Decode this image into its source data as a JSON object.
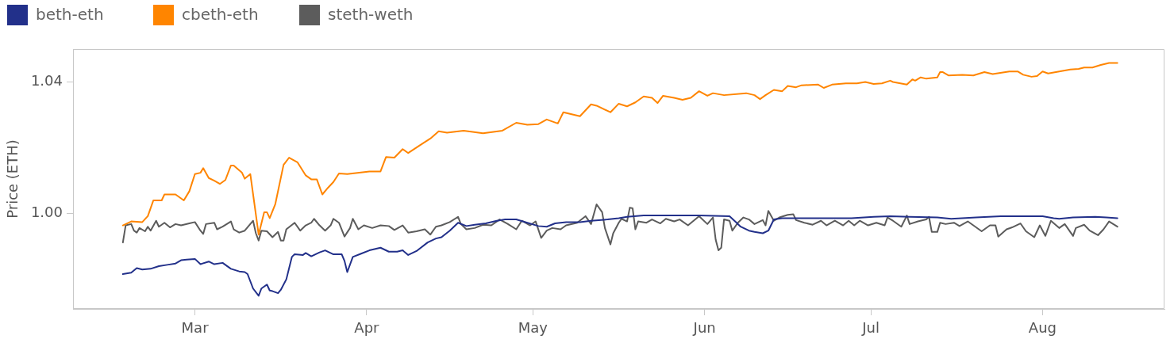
{
  "chart_data": {
    "type": "line",
    "ylabel": "Price (ETH)",
    "legend": "top left",
    "xlim": [
      "--02-07",
      "--08-23"
    ],
    "xticks": [
      {
        "value": "--03-01",
        "label": "Mar"
      },
      {
        "value": "--04-01",
        "label": "Apr"
      },
      {
        "value": "--05-01",
        "label": "May"
      },
      {
        "value": "--06-01",
        "label": "Jun"
      },
      {
        "value": "--07-01",
        "label": "Jul"
      },
      {
        "value": "--08-01",
        "label": "Aug"
      }
    ],
    "ylim": [
      0.971,
      1.05
    ],
    "yticks": [
      {
        "value": 1,
        "label": "1.00"
      },
      {
        "value": 1.04,
        "label": "1.04"
      }
    ],
    "series": [
      {
        "name": "beth-eth",
        "color": "#22308a",
        "x": [
          "--02-16",
          "--02-17T12:00",
          "--02-18T12:00",
          "--02-19T12:00",
          "--02-21",
          "--02-22T12:00",
          "--02-24",
          "--02-25T12:00",
          "--02-26T12:00",
          "--02-27T12:00",
          "--03-01",
          "--03-02",
          "--03-03T12:00",
          "--03-04T12:00",
          "--03-06",
          "--03-07T12:00",
          "--03-09",
          "--03-10",
          "--03-10T12:00",
          "--03-11T12:00",
          "--03-12T12:00",
          "--03-13",
          "--03-14",
          "--03-14T12:00",
          "--03-15",
          "--03-16",
          "--03-16T12:00",
          "--03-17T12:00",
          "--03-18T12:00",
          "--03-19",
          "--03-20T12:00",
          "--03-21",
          "--03-22",
          "--03-23T12:00",
          "--03-24T12:00",
          "--03-26",
          "--03-27T12:00",
          "--03-28",
          "--03-28T12:00",
          "--03-29T12:00",
          "--03-31",
          "--04-01T12:00",
          "--04-03T12:00",
          "--04-05",
          "--04-06T12:00",
          "--04-07T12:00",
          "--04-08T12:00",
          "--04-10",
          "--04-12",
          "--04-13T12:00",
          "--04-14T12:00",
          "--04-16",
          "--04-17T12:00",
          "--04-19",
          "--04-20T12:00",
          "--04-22T12:00",
          "--04-24T12:00",
          "--04-26",
          "--04-28",
          "--04-30",
          "--05-02",
          "--05-03T12:00",
          "--05-05",
          "--05-07",
          "--05-09T12:00",
          "--05-11T12:00",
          "--05-14T12:00",
          "--05-16T12:00",
          "--05-18",
          "--05-21",
          "--05-25",
          "--05-31",
          "--06-05T12:00",
          "--06-06T12:00",
          "--06-07T12:00",
          "--06-09",
          "--06-10",
          "--06-11T12:00",
          "--06-12T12:00",
          "--06-13T12:00",
          "--06-15",
          "--06-18",
          "--06-22T12:00",
          "--06-27T12:00",
          "--07-01T12:00",
          "--07-04T12:00",
          "--07-08",
          "--07-13",
          "--07-15T12:00",
          "--07-20",
          "--07-24T12:00",
          "--08-01",
          "--08-03",
          "--08-04",
          "--08-06T12:00",
          "--08-10T12:00",
          "--08-12T12:00",
          "--08-14T12:00"
        ],
        "values": [
          0.9816,
          0.982,
          0.9834,
          0.983,
          0.9832,
          0.984,
          0.9844,
          0.9848,
          0.9858,
          0.986,
          0.9862,
          0.9846,
          0.9854,
          0.9846,
          0.985,
          0.9832,
          0.9824,
          0.9822,
          0.9816,
          0.9772,
          0.975,
          0.9772,
          0.9784,
          0.9766,
          0.9764,
          0.9758,
          0.9768,
          0.98,
          0.9868,
          0.9876,
          0.9874,
          0.988,
          0.987,
          0.9882,
          0.9888,
          0.9876,
          0.9876,
          0.9856,
          0.9822,
          0.9868,
          0.9878,
          0.9888,
          0.9896,
          0.9884,
          0.9884,
          0.9888,
          0.9874,
          0.9886,
          0.9912,
          0.9924,
          0.9928,
          0.9948,
          0.9972,
          0.9962,
          0.9966,
          0.997,
          0.9978,
          0.9982,
          0.9982,
          0.9972,
          0.9962,
          0.996,
          0.997,
          0.9974,
          0.9974,
          0.9978,
          0.9982,
          0.9986,
          0.999,
          0.9994,
          0.9994,
          0.9994,
          0.9992,
          0.9976,
          0.996,
          0.9948,
          0.9944,
          0.994,
          0.9948,
          0.9982,
          0.9986,
          0.9986,
          0.9986,
          0.9986,
          0.999,
          0.9992,
          0.999,
          0.9988,
          0.9984,
          0.9988,
          0.9992,
          0.9992,
          0.9986,
          0.9984,
          0.9988,
          0.999,
          0.9988,
          0.9986
        ]
      },
      {
        "name": "cbeth-eth",
        "color": "#ff8500",
        "x": [
          "--02-16",
          "--02-17T12:00",
          "--02-19T12:00",
          "--02-20T12:00",
          "--02-21T12:00",
          "--02-23",
          "--02-23T12:00",
          "--02-25T12:00",
          "--02-27",
          "--02-28",
          "--03-01",
          "--03-02",
          "--03-02T12:00",
          "--03-03T12:00",
          "--03-04T12:00",
          "--03-05T12:00",
          "--03-06T12:00",
          "--03-07T12:00",
          "--03-08",
          "--03-09T12:00",
          "--03-10",
          "--03-11",
          "--03-12T12:00",
          "--03-13T12:00",
          "--03-14",
          "--03-14T12:00",
          "--03-15T12:00",
          "--03-17",
          "--03-18",
          "--03-19T12:00",
          "--03-21",
          "--03-22",
          "--03-23",
          "--03-24",
          "--03-25",
          "--03-26",
          "--03-27",
          "--03-28T12:00",
          "--04-01T12:00",
          "--04-03T12:00",
          "--04-04T12:00",
          "--04-06",
          "--04-07T12:00",
          "--04-08T12:00",
          "--04-11",
          "--04-12T12:00",
          "--04-14",
          "--04-15T12:00",
          "--04-18T12:00",
          "--04-22",
          "--04-25T12:00",
          "--04-28",
          "--04-30",
          "--05-02",
          "--05-03T12:00",
          "--05-05T12:00",
          "--05-06T12:00",
          "--05-08",
          "--05-09T12:00",
          "--05-11T12:00",
          "--05-12T12:00",
          "--05-15",
          "--05-16T12:00",
          "--05-18",
          "--05-19T12:00",
          "--05-21",
          "--05-22T12:00",
          "--05-23T12:00",
          "--05-24T12:00",
          "--05-26T12:00",
          "--05-28",
          "--05-29T12:00",
          "--05-31",
          "--06-01T12:00",
          "--06-02T12:00",
          "--06-04T12:00",
          "--06-08T12:00",
          "--06-10",
          "--06-11",
          "--06-12",
          "--06-13T12:00",
          "--06-15",
          "--06-16",
          "--06-17T12:00",
          "--06-18T12:00",
          "--06-21T12:00",
          "--06-22T12:00",
          "--06-24",
          "--06-26T12:00",
          "--06-28T12:00",
          "--06-30",
          "--07-01T12:00",
          "--07-03",
          "--07-04T12:00",
          "--07-05",
          "--07-07T12:00",
          "--07-08T12:00",
          "--07-09",
          "--07-10",
          "--07-11",
          "--07-13",
          "--07-13T12:00",
          "--07-14",
          "--07-15",
          "--07-17T12:00",
          "--07-19T12:00",
          "--07-21T12:00",
          "--07-23",
          "--07-26",
          "--07-27T12:00",
          "--07-28T12:00",
          "--07-30",
          "--07-31",
          "--08-01",
          "--08-02",
          "--08-04",
          "--08-06",
          "--08-07T12:00",
          "--08-08T12:00",
          "--08-10",
          "--08-11T12:00",
          "--08-13",
          "--08-14T12:00"
        ],
        "values": [
          0.9964,
          0.9976,
          0.9974,
          0.9992,
          1.004,
          1.004,
          1.0058,
          1.0058,
          1.004,
          1.0068,
          1.012,
          1.0124,
          1.0138,
          1.0108,
          1.01,
          1.009,
          1.0102,
          1.0146,
          1.0146,
          1.0124,
          1.0106,
          1.012,
          0.9936,
          1.0004,
          1.0004,
          0.9986,
          1.0028,
          1.0148,
          1.017,
          1.0156,
          1.0116,
          1.0104,
          1.0104,
          1.0058,
          1.0078,
          1.0096,
          1.0122,
          1.012,
          1.0128,
          1.0128,
          1.0172,
          1.017,
          1.0196,
          1.0184,
          1.0212,
          1.0228,
          1.025,
          1.0246,
          1.0252,
          1.0244,
          1.0252,
          1.0276,
          1.027,
          1.0272,
          1.0286,
          1.0274,
          1.0308,
          1.0302,
          1.0296,
          1.0332,
          1.0328,
          1.0308,
          1.0334,
          1.0326,
          1.0338,
          1.0356,
          1.0352,
          1.0336,
          1.0358,
          1.0352,
          1.0346,
          1.0352,
          1.0372,
          1.0358,
          1.0366,
          1.036,
          1.0366,
          1.036,
          1.0348,
          1.036,
          1.0376,
          1.0372,
          1.0388,
          1.0384,
          1.039,
          1.0392,
          1.0382,
          1.0392,
          1.0396,
          1.0396,
          1.04,
          1.0394,
          1.0396,
          1.0404,
          1.04,
          1.0392,
          1.0408,
          1.0404,
          1.0414,
          1.041,
          1.0414,
          1.043,
          1.043,
          1.042,
          1.0422,
          1.042,
          1.043,
          1.0424,
          1.0432,
          1.0432,
          1.0422,
          1.0416,
          1.0418,
          1.0432,
          1.0426,
          1.0432,
          1.0438,
          1.044,
          1.0444,
          1.0444,
          1.0452,
          1.0458,
          1.0458
        ]
      },
      {
        "name": "steth-weth",
        "color": "#5c5c5c",
        "x": [
          "--02-16",
          "--02-16T12:00",
          "--02-17T12:00",
          "--02-18",
          "--02-18T12:00",
          "--02-19",
          "--02-20",
          "--02-20T12:00",
          "--02-21",
          "--02-22",
          "--02-22T12:00",
          "--02-23T12:00",
          "--02-24T12:00",
          "--02-25T12:00",
          "--02-26T12:00",
          "--02-28",
          "--03-01",
          "--03-02",
          "--03-02T12:00",
          "--03-03",
          "--03-04T12:00",
          "--03-05",
          "--03-06",
          "--03-07T12:00",
          "--03-08",
          "--03-09",
          "--03-10",
          "--03-11T12:00",
          "--03-12",
          "--03-12T12:00",
          "--03-13",
          "--03-14",
          "--03-15",
          "--03-16",
          "--03-16T12:00",
          "--03-17",
          "--03-17T12:00",
          "--03-19",
          "--03-20",
          "--03-21",
          "--03-22",
          "--03-22T12:00",
          "--03-23T12:00",
          "--03-24T12:00",
          "--03-25T12:00",
          "--03-26",
          "--03-27",
          "--03-28",
          "--03-29",
          "--03-29T12:00",
          "--03-30T12:00",
          "--03-31T12:00",
          "--04-02",
          "--04-03T12:00",
          "--04-05",
          "--04-06",
          "--04-07T12:00",
          "--04-08T12:00",
          "--04-10",
          "--04-11T12:00",
          "--04-12T12:00",
          "--04-13T12:00",
          "--04-14T12:00",
          "--04-16",
          "--04-17T12:00",
          "--04-18",
          "--04-19",
          "--04-20T12:00",
          "--04-22",
          "--04-23T12:00",
          "--04-25",
          "--04-26T12:00",
          "--04-28",
          "--04-29",
          "--04-30T12:00",
          "--05-01T12:00",
          "--05-02T12:00",
          "--05-03T12:00",
          "--05-04T12:00",
          "--05-06",
          "--05-07",
          "--05-09",
          "--05-10T12:00",
          "--05-11T12:00",
          "--05-12T12:00",
          "--05-13T12:00",
          "--05-14",
          "--05-15",
          "--05-15T12:00",
          "--05-16T12:00",
          "--05-17",
          "--05-18",
          "--05-18T12:00",
          "--05-19",
          "--05-19T12:00",
          "--05-20",
          "--05-21T12:00",
          "--05-22T12:00",
          "--05-24",
          "--05-25",
          "--05-26T12:00",
          "--05-27T12:00",
          "--05-29",
          "--05-30",
          "--05-31",
          "--06-01T12:00",
          "--06-02T12:00",
          "--06-03",
          "--06-03T12:00",
          "--06-04",
          "--06-04T12:00",
          "--06-05T12:00",
          "--06-06",
          "--06-07",
          "--06-08",
          "--06-09",
          "--06-10",
          "--06-11T12:00",
          "--06-12",
          "--06-12T12:00",
          "--06-13T12:00",
          "--06-14T12:00",
          "--06-16",
          "--06-17",
          "--06-17T12:00",
          "--06-19",
          "--06-20T12:00",
          "--06-22",
          "--06-23",
          "--06-24T12:00",
          "--06-26",
          "--06-27",
          "--06-28",
          "--06-29",
          "--06-30T12:00",
          "--07-02",
          "--07-03T12:00",
          "--07-04",
          "--07-05",
          "--07-06T12:00",
          "--07-07T12:00",
          "--07-08",
          "--07-09T12:00",
          "--07-11",
          "--07-11T12:00",
          "--07-12",
          "--07-13",
          "--07-13T12:00",
          "--07-14T12:00",
          "--07-16",
          "--07-17",
          "--07-18T12:00",
          "--07-20",
          "--07-21",
          "--07-22T12:00",
          "--07-23T12:00",
          "--07-24",
          "--07-25T12:00",
          "--07-26T12:00",
          "--07-28",
          "--07-29",
          "--07-30T12:00",
          "--07-31T12:00",
          "--08-01T12:00",
          "--08-02T12:00",
          "--08-04",
          "--08-05",
          "--08-06T12:00",
          "--08-07",
          "--08-08T12:00",
          "--08-09T12:00",
          "--08-11",
          "--08-12",
          "--08-13",
          "--08-14T12:00"
        ],
        "values": [
          0.9912,
          0.9964,
          0.9968,
          0.9948,
          0.9942,
          0.9956,
          0.9946,
          0.996,
          0.9948,
          0.9978,
          0.996,
          0.9972,
          0.9958,
          0.9968,
          0.9964,
          0.997,
          0.9974,
          0.9948,
          0.9938,
          0.9968,
          0.9972,
          0.9952,
          0.996,
          0.9976,
          0.9952,
          0.9942,
          0.9948,
          0.9978,
          0.994,
          0.9918,
          0.9948,
          0.9946,
          0.9928,
          0.9944,
          0.9918,
          0.9918,
          0.9952,
          0.9972,
          0.9948,
          0.9964,
          0.9972,
          0.9984,
          0.9964,
          0.9948,
          0.9964,
          0.9984,
          0.9972,
          0.993,
          0.9956,
          0.9984,
          0.9952,
          0.9964,
          0.9956,
          0.9964,
          0.9962,
          0.995,
          0.9964,
          0.9942,
          0.9946,
          0.9952,
          0.9936,
          0.996,
          0.9964,
          0.9974,
          0.999,
          0.9968,
          0.9952,
          0.9956,
          0.9966,
          0.9964,
          0.9982,
          0.9968,
          0.9952,
          0.9978,
          0.9964,
          0.9976,
          0.9926,
          0.9948,
          0.9956,
          0.9952,
          0.9964,
          0.9972,
          0.9992,
          0.9968,
          1.0028,
          1.0004,
          0.9956,
          0.9906,
          0.994,
          0.9972,
          0.9984,
          0.9976,
          1.0018,
          1.0016,
          0.9952,
          0.9976,
          0.9972,
          0.9982,
          0.997,
          0.9984,
          0.9976,
          0.9982,
          0.9964,
          0.9978,
          0.9992,
          0.9968,
          0.9988,
          0.992,
          0.9888,
          0.9896,
          0.9982,
          0.9978,
          0.9948,
          0.9972,
          0.9988,
          0.9982,
          0.9968,
          0.998,
          0.9964,
          1.0008,
          0.9978,
          0.9988,
          0.9996,
          0.9998,
          0.998,
          0.9972,
          0.9966,
          0.9978,
          0.9964,
          0.9978,
          0.9964,
          0.9978,
          0.9964,
          0.9978,
          0.9964,
          0.9972,
          0.9964,
          0.9988,
          0.9978,
          0.996,
          0.9994,
          0.9968,
          0.9976,
          0.9982,
          0.999,
          0.9944,
          0.9944,
          0.9972,
          0.9968,
          0.9972,
          0.9962,
          0.9976,
          0.9958,
          0.9946,
          0.9964,
          0.9964,
          0.993,
          0.9952,
          0.9958,
          0.997,
          0.9946,
          0.9928,
          0.9964,
          0.9932,
          0.9978,
          0.9956,
          0.9968,
          0.9932,
          0.9956,
          0.9966,
          0.9948,
          0.9934,
          0.9952,
          0.9976,
          0.996
        ]
      }
    ]
  }
}
